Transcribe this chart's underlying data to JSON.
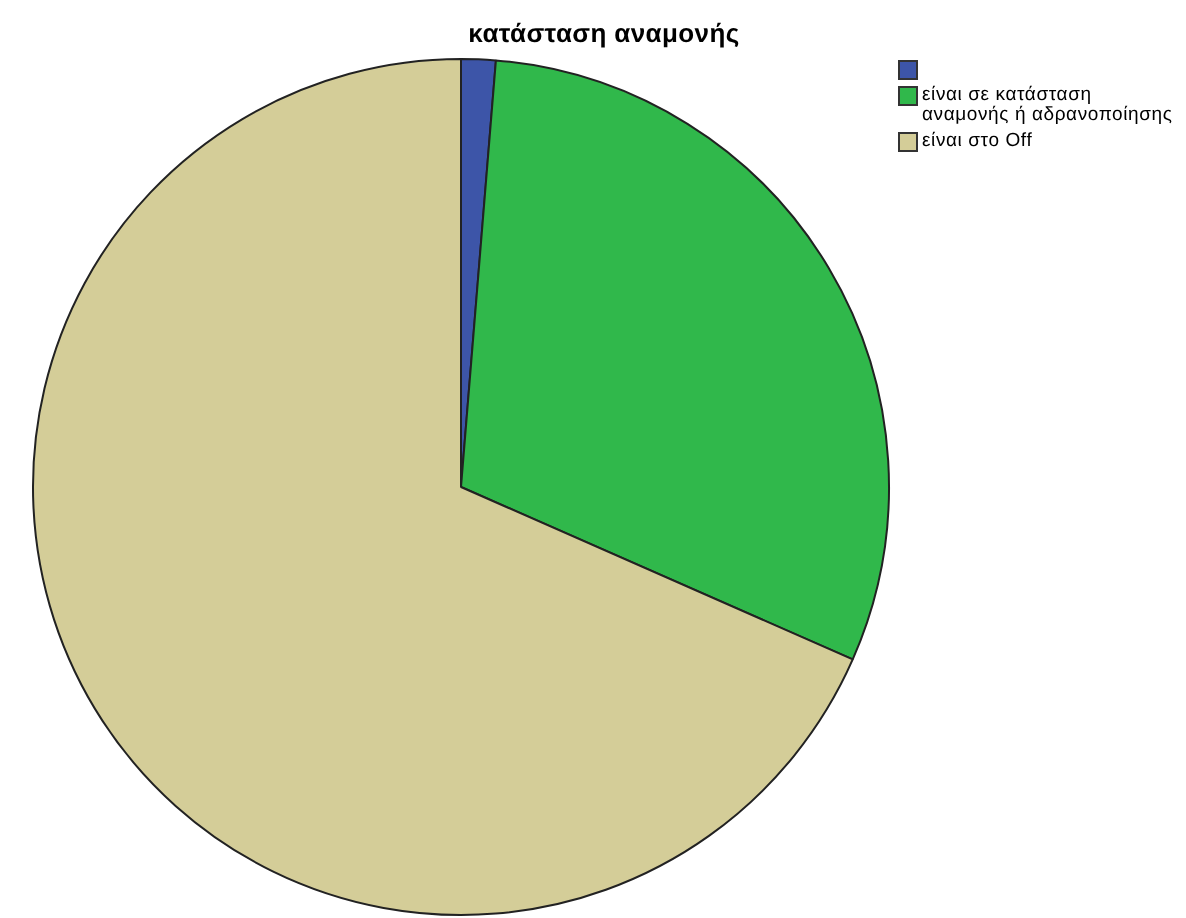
{
  "chart_data": {
    "type": "pie",
    "title": "κατάσταση αναμονής",
    "categories": [
      null,
      "είναι σε κατάσταση αναμονής ή αδρανοποίησης",
      "είναι στο Off"
    ],
    "values": [
      1.3,
      30.3,
      68.4
    ],
    "colors": [
      "#3d55a8",
      "#30b84b",
      "#d4cd98"
    ],
    "legend": "top right"
  }
}
